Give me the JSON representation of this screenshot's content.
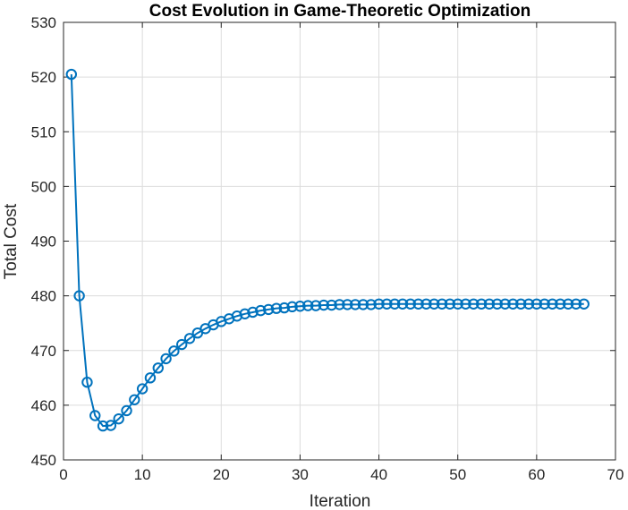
{
  "chart_data": {
    "type": "line",
    "title": "Cost Evolution in Game-Theoretic Optimization",
    "xlabel": "Iteration",
    "ylabel": "Total Cost",
    "xlim": [
      0,
      70
    ],
    "ylim": [
      450,
      530
    ],
    "xticks": [
      "0",
      "10",
      "20",
      "30",
      "40",
      "50",
      "60",
      "70"
    ],
    "yticks": [
      "450",
      "460",
      "470",
      "480",
      "490",
      "500",
      "510",
      "520",
      "530"
    ],
    "grid": true,
    "box": true,
    "marker": "circle",
    "line_color": "#0072BD",
    "series": [
      {
        "x": [
          1,
          2,
          3,
          4,
          5,
          6,
          7,
          8,
          9,
          10,
          11,
          12,
          13,
          14,
          15,
          16,
          17,
          18,
          19,
          20,
          21,
          22,
          23,
          24,
          25,
          26,
          27,
          28,
          29,
          30,
          31,
          32,
          33,
          34,
          35,
          36,
          37,
          38,
          39,
          40,
          41,
          42,
          43,
          44,
          45,
          46,
          47,
          48,
          49,
          50,
          51,
          52,
          53,
          54,
          55,
          56,
          57,
          58,
          59,
          60,
          61,
          62,
          63,
          64,
          65,
          66
        ],
        "values": [
          520.5,
          480.0,
          464.2,
          458.1,
          456.2,
          456.3,
          457.5,
          459.0,
          461.0,
          463.0,
          465.0,
          466.8,
          468.5,
          469.9,
          471.1,
          472.2,
          473.2,
          474.0,
          474.7,
          475.3,
          475.8,
          476.3,
          476.7,
          477.0,
          477.3,
          477.5,
          477.7,
          477.8,
          478.0,
          478.1,
          478.2,
          478.2,
          478.3,
          478.3,
          478.4,
          478.4,
          478.4,
          478.4,
          478.4,
          478.5,
          478.5,
          478.5,
          478.5,
          478.5,
          478.5,
          478.5,
          478.5,
          478.5,
          478.5,
          478.5,
          478.5,
          478.5,
          478.5,
          478.5,
          478.5,
          478.5,
          478.5,
          478.5,
          478.5,
          478.5,
          478.5,
          478.5,
          478.5,
          478.5,
          478.5,
          478.5
        ]
      }
    ]
  }
}
